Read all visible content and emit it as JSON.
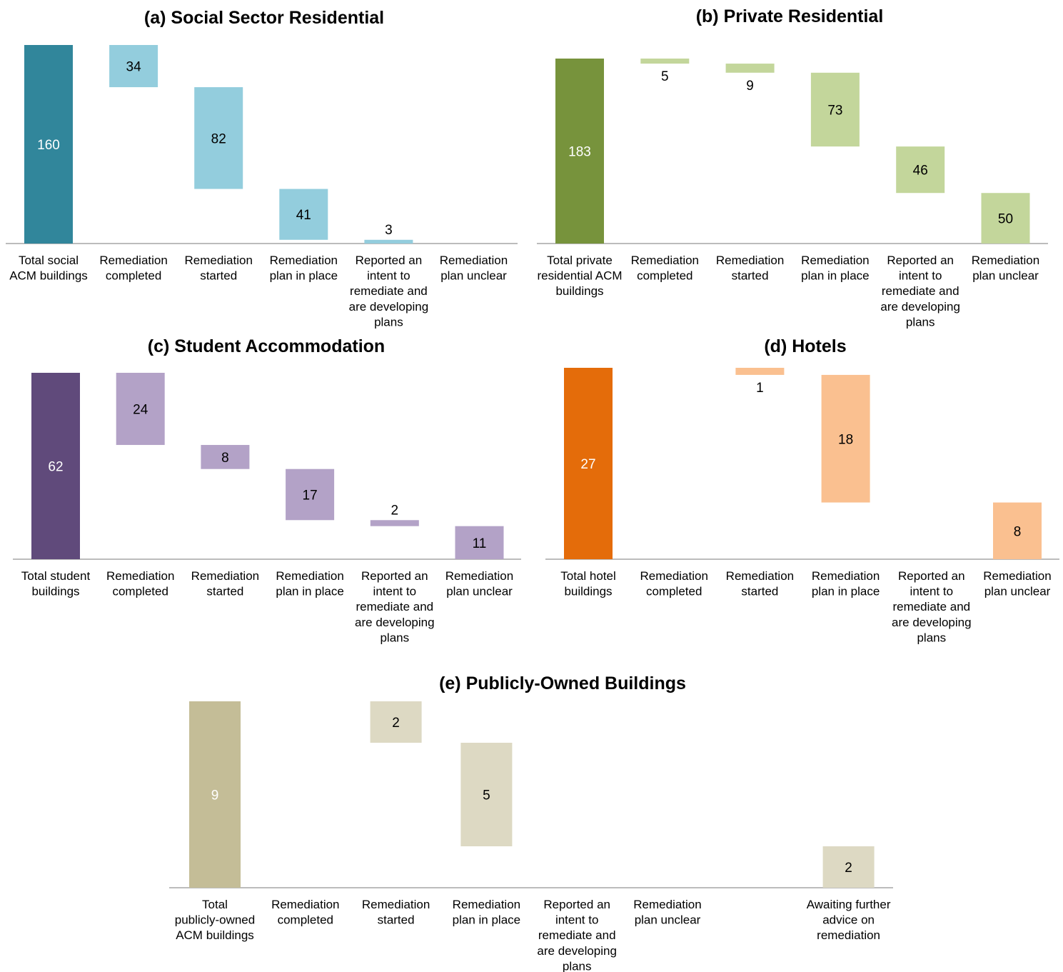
{
  "colors": {
    "axis": "#a6a6a6"
  },
  "chart_data": [
    {
      "type": "bar",
      "subtype": "waterfall",
      "title": "(a) Social Sector Residential",
      "total_color": "#31869b",
      "step_color": "#93cddd",
      "categories": [
        "Total social ACM buildings",
        "Remediation completed",
        "Remediation started",
        "Remediation plan in place",
        "Reported an intent to remediate and are developing plans",
        "Remediation plan unclear"
      ],
      "values": [
        160,
        34,
        82,
        41,
        3,
        null
      ],
      "value_labels": [
        "160",
        "34",
        "82",
        "41",
        "3",
        ""
      ]
    },
    {
      "type": "bar",
      "subtype": "waterfall",
      "title": "(b) Private Residential",
      "total_color": "#77933c",
      "step_color": "#c3d69b",
      "categories": [
        "Total private residential ACM buildings",
        "Remediation completed",
        "Remediation started",
        "Remediation plan in place",
        "Reported an intent to remediate and are developing plans",
        "Remediation plan unclear"
      ],
      "values": [
        183,
        5,
        9,
        73,
        46,
        50
      ],
      "value_labels": [
        "183",
        "5",
        "9",
        "73",
        "46",
        "50"
      ]
    },
    {
      "type": "bar",
      "subtype": "waterfall",
      "title": "(c) Student Accommodation",
      "total_color": "#604a7b",
      "step_color": "#b3a2c7",
      "categories": [
        "Total student buildings",
        "Remediation completed",
        "Remediation started",
        "Remediation plan in place",
        "Reported an intent to remediate and are developing plans",
        "Remediation plan unclear"
      ],
      "values": [
        62,
        24,
        8,
        17,
        2,
        11
      ],
      "value_labels": [
        "62",
        "24",
        "8",
        "17",
        "2",
        "11"
      ]
    },
    {
      "type": "bar",
      "subtype": "waterfall",
      "title": "(d) Hotels",
      "total_color": "#e46c0a",
      "step_color": "#fac090",
      "categories": [
        "Total hotel buildings",
        "Remediation completed",
        "Remediation started",
        "Remediation plan in place",
        "Reported an intent to remediate and are developing plans",
        "Remediation plan unclear"
      ],
      "values": [
        27,
        null,
        1,
        18,
        null,
        8
      ],
      "value_labels": [
        "27",
        "",
        "1",
        "18",
        "",
        "8"
      ]
    },
    {
      "type": "bar",
      "subtype": "waterfall",
      "title": "(e) Publicly-Owned Buildings",
      "total_color": "#c4bd97",
      "step_color": "#ddd9c3",
      "categories": [
        "Total publicly-owned ACM buildings",
        "Remediation completed",
        "Remediation started",
        "Remediation plan in place",
        "Reported an intent to remediate and are developing plans",
        "Remediation plan unclear",
        "",
        "Awaiting further advice on remediation"
      ],
      "values": [
        9,
        null,
        2,
        5,
        null,
        null,
        null,
        2
      ],
      "value_labels": [
        "9",
        "",
        "2",
        "5",
        "",
        "",
        "",
        "2"
      ]
    }
  ]
}
